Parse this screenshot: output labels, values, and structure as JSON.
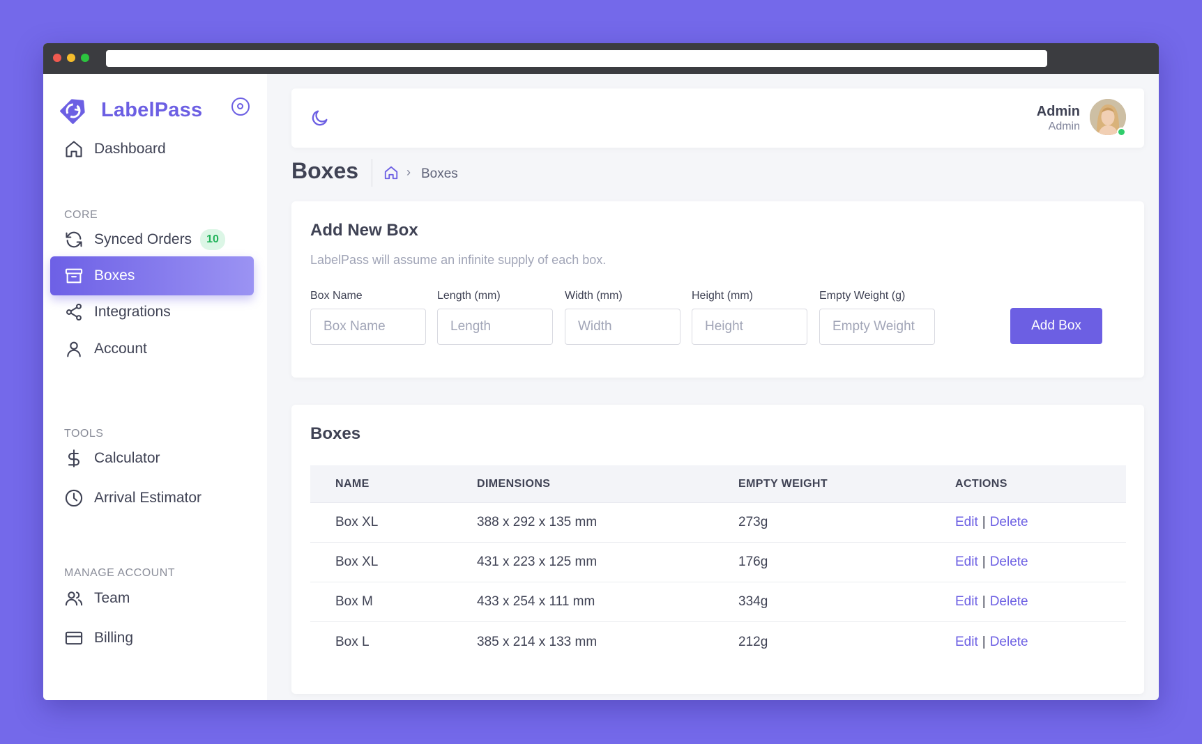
{
  "brand": {
    "name": "LabelPass"
  },
  "sidebar": {
    "dashboard": "Dashboard",
    "sections": {
      "core": "CORE",
      "tools": "TOOLS",
      "manage": "MANAGE ACCOUNT"
    },
    "items": {
      "synced_orders": {
        "label": "Synced Orders",
        "badge": "10"
      },
      "boxes": {
        "label": "Boxes"
      },
      "integrations": {
        "label": "Integrations"
      },
      "account": {
        "label": "Account"
      },
      "calculator": {
        "label": "Calculator"
      },
      "arrival_estimator": {
        "label": "Arrival Estimator"
      },
      "team": {
        "label": "Team"
      },
      "billing": {
        "label": "Billing"
      }
    }
  },
  "topbar": {
    "user_name": "Admin",
    "user_role": "Admin"
  },
  "page": {
    "title": "Boxes",
    "breadcrumb_current": "Boxes",
    "breadcrumb_sep": "›"
  },
  "add_form": {
    "title": "Add New Box",
    "subtitle": "LabelPass will assume an infinite supply of each box.",
    "fields": {
      "name": {
        "label": "Box Name",
        "placeholder": "Box Name"
      },
      "length": {
        "label": "Length (mm)",
        "placeholder": "Length"
      },
      "width": {
        "label": "Width (mm)",
        "placeholder": "Width"
      },
      "height": {
        "label": "Height (mm)",
        "placeholder": "Height"
      },
      "weight": {
        "label": "Empty Weight (g)",
        "placeholder": "Empty Weight"
      }
    },
    "submit_label": "Add Box"
  },
  "boxes_table": {
    "title": "Boxes",
    "columns": [
      "NAME",
      "DIMENSIONS",
      "EMPTY WEIGHT",
      "ACTIONS"
    ],
    "edit_label": "Edit",
    "delete_label": "Delete",
    "separator": "|",
    "rows": [
      {
        "name": "Box XL",
        "dimensions": "388 x 292 x 135 mm",
        "weight": "273g"
      },
      {
        "name": "Box XL",
        "dimensions": "431 x 223 x 125 mm",
        "weight": "176g"
      },
      {
        "name": "Box M",
        "dimensions": "433 x 254 x 111 mm",
        "weight": "334g"
      },
      {
        "name": "Box L",
        "dimensions": "385 x 214 x 133 mm",
        "weight": "212g"
      }
    ]
  },
  "colors": {
    "accent": "#6c5fe3",
    "background": "#7469ea",
    "badge_green": "#22b35a",
    "online": "#2fcd6b"
  }
}
